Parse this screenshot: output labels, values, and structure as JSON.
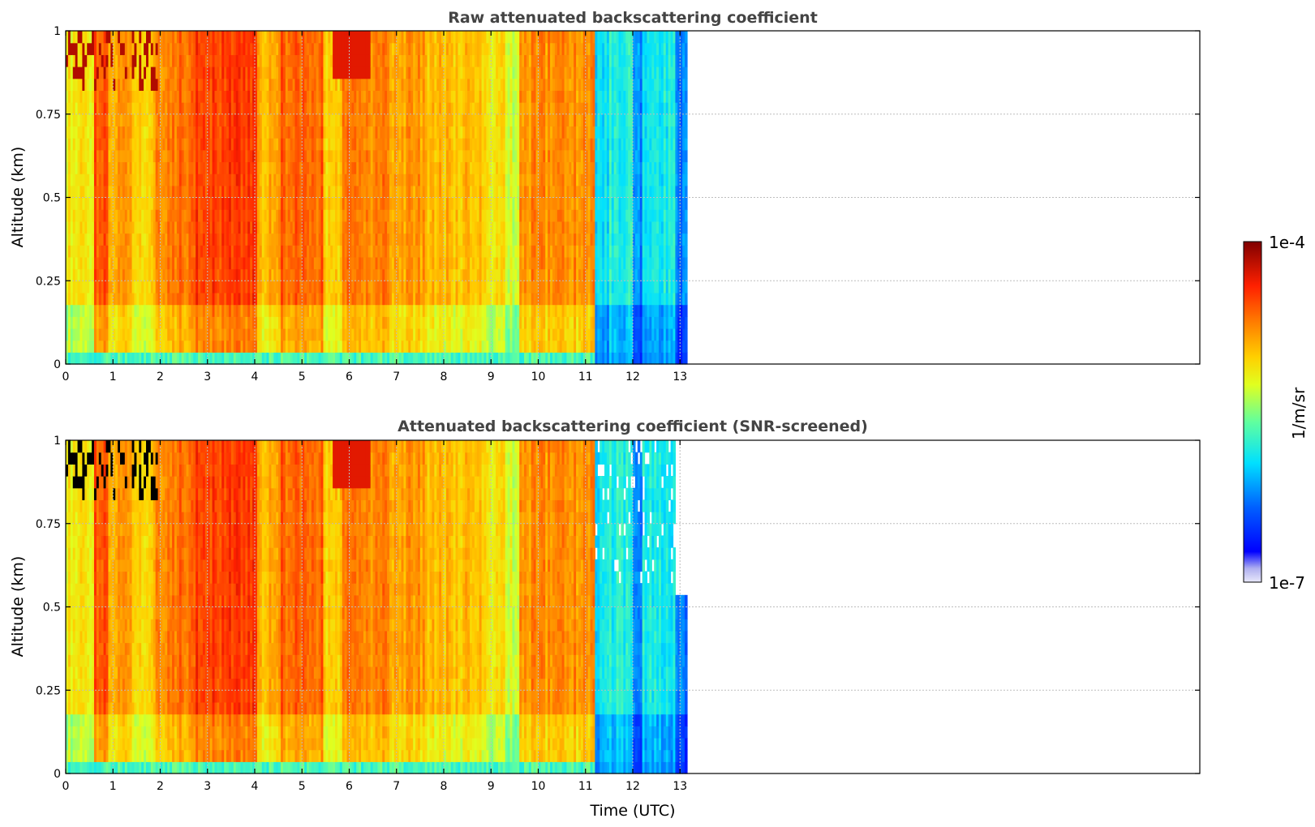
{
  "chart_data": [
    {
      "type": "heatmap",
      "title": "Raw attenuated backscattering coefficient",
      "xlabel": "",
      "ylabel": "Altitude (km)",
      "xlim": [
        0,
        24
      ],
      "ylim": [
        0,
        1
      ],
      "x_ticks": [
        0,
        1,
        2,
        3,
        4,
        5,
        6,
        7,
        8,
        9,
        10,
        11,
        12,
        13
      ],
      "y_ticks": [
        "0",
        "0.25",
        "0.5",
        "0.75",
        "1"
      ],
      "grid": true,
      "data_extent_hours": [
        0,
        13.15
      ],
      "screened": false
    },
    {
      "type": "heatmap",
      "title": "Attenuated backscattering coefficient (SNR-screened)",
      "xlabel": "Time (UTC)",
      "ylabel": "Altitude (km)",
      "xlim": [
        0,
        24
      ],
      "ylim": [
        0,
        1
      ],
      "x_ticks": [
        0,
        1,
        2,
        3,
        4,
        5,
        6,
        7,
        8,
        9,
        10,
        11,
        12,
        13
      ],
      "y_ticks": [
        "0",
        "0.25",
        "0.5",
        "0.75",
        "1"
      ],
      "grid": true,
      "data_extent_hours": [
        0,
        13.15
      ],
      "screened": true
    }
  ],
  "colorbar": {
    "label": "1/m/sr",
    "max_label": "1e-4",
    "min_label": "1e-7",
    "scale": "log",
    "colormap": "jet",
    "colors": [
      "#e8e8fa",
      "#b8b8f2",
      "#0000ff",
      "#0080ff",
      "#00ffff",
      "#80ff80",
      "#ffff00",
      "#ff8000",
      "#ff0000",
      "#800000"
    ]
  }
}
